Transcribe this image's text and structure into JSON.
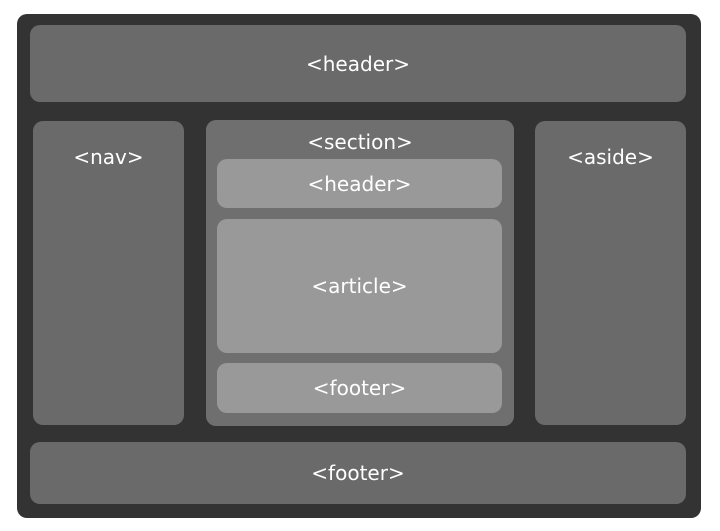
{
  "layout": {
    "header": {
      "label": "<header>"
    },
    "nav": {
      "label": "<nav>"
    },
    "section": {
      "label": "<section>",
      "header": {
        "label": "<header>"
      },
      "article": {
        "label": "<article>"
      },
      "footer": {
        "label": "<footer>"
      }
    },
    "aside": {
      "label": "<aside>"
    },
    "footer": {
      "label": "<footer>"
    }
  },
  "colors": {
    "frame": "#333333",
    "region": "#6a6a6a",
    "inner_block": "#999999",
    "text": "#ffffff"
  }
}
